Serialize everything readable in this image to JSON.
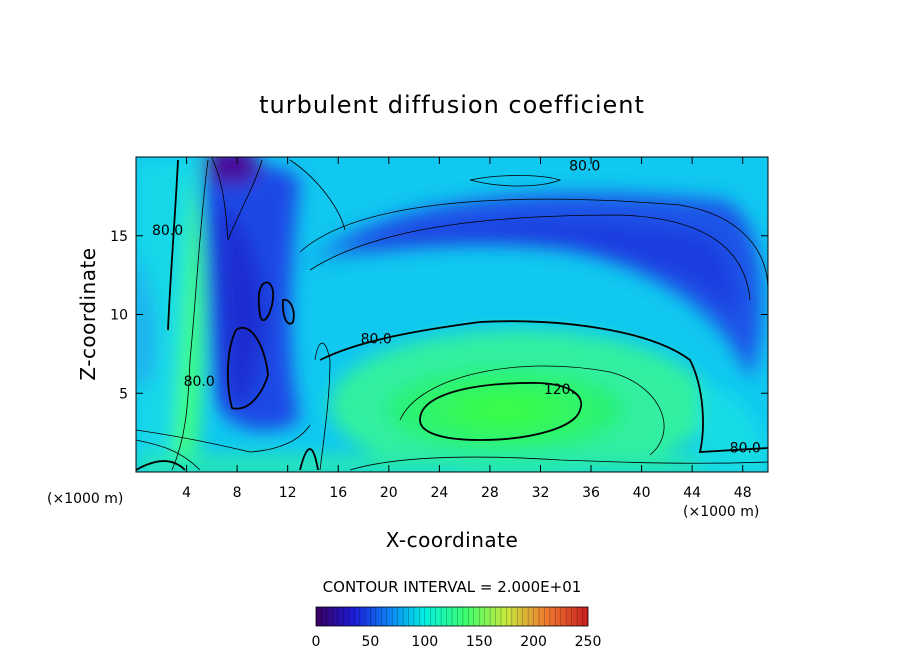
{
  "chart_data": {
    "type": "heatmap",
    "title": "turbulent diffusion coefficient",
    "xlabel": "X-coordinate",
    "ylabel": "Z-coordinate",
    "x_unit": "(×1000 m)",
    "x_unit_right": "(×1000 m)",
    "xlim": [
      0,
      50
    ],
    "ylim": [
      0,
      20
    ],
    "x_ticks": [
      4,
      8,
      12,
      16,
      20,
      24,
      28,
      32,
      36,
      40,
      44,
      48
    ],
    "y_ticks": [
      5,
      10,
      15
    ],
    "contour_interval_text": "CONTOUR INTERVAL = 2.000E+01",
    "contour_interval": 20,
    "color_scale": {
      "min": 0,
      "max": 250,
      "ticks": [
        0,
        50,
        100,
        150,
        200,
        250
      ],
      "colors": [
        "#3a0060",
        "#1b1bd8",
        "#0a8cf5",
        "#00f0e0",
        "#3cff6e",
        "#c8e83c",
        "#f07830",
        "#c81e1e"
      ]
    },
    "contour_labels": [
      {
        "text": "80.0",
        "x": 35.5,
        "z": 19.4
      },
      {
        "text": "80.0",
        "x": 2.5,
        "z": 15.3
      },
      {
        "text": "80.0",
        "x": 19.0,
        "z": 8.4
      },
      {
        "text": "80.0",
        "x": 5.0,
        "z": 5.7
      },
      {
        "text": "120.",
        "x": 33.5,
        "z": 5.2
      },
      {
        "text": "80.0",
        "x": 48.2,
        "z": 1.5
      }
    ]
  }
}
